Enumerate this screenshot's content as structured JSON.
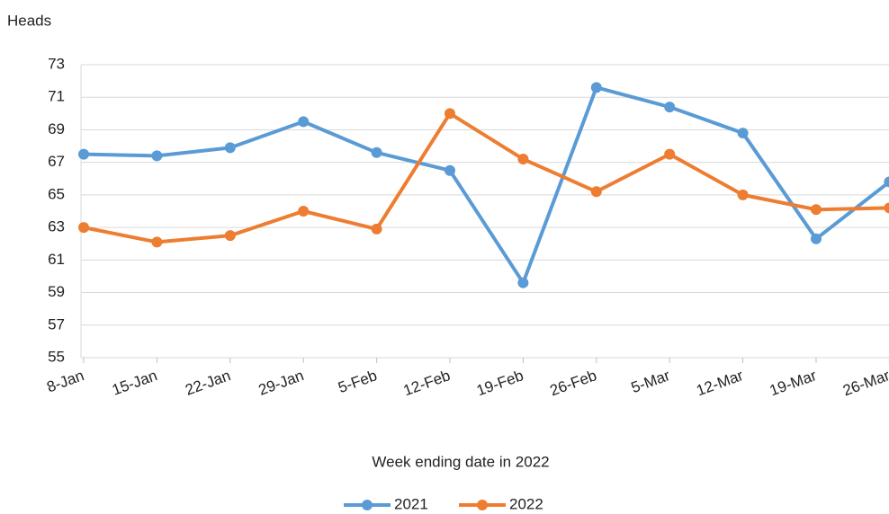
{
  "chart_data": {
    "type": "line",
    "y_label": "Heads",
    "x_label": "Week ending date in 2022",
    "categories": [
      "8-Jan",
      "15-Jan",
      "22-Jan",
      "29-Jan",
      "5-Feb",
      "12-Feb",
      "19-Feb",
      "26-Feb",
      "5-Mar",
      "12-Mar",
      "19-Mar",
      "26-Mar"
    ],
    "series": [
      {
        "name": "2021",
        "color": "#5b9bd5",
        "values": [
          67.5,
          67.4,
          67.9,
          69.5,
          67.6,
          66.5,
          59.6,
          71.6,
          70.4,
          68.8,
          62.3,
          65.8
        ]
      },
      {
        "name": "2022",
        "color": "#ed7d31",
        "values": [
          63.0,
          62.1,
          62.5,
          64.0,
          62.9,
          70.0,
          67.2,
          65.2,
          67.5,
          65.0,
          64.1,
          64.2
        ]
      }
    ],
    "ylim": [
      55,
      73
    ],
    "yticks": [
      55,
      57,
      59,
      61,
      63,
      65,
      67,
      69,
      71,
      73
    ],
    "grid": true,
    "legend": "bottom"
  }
}
